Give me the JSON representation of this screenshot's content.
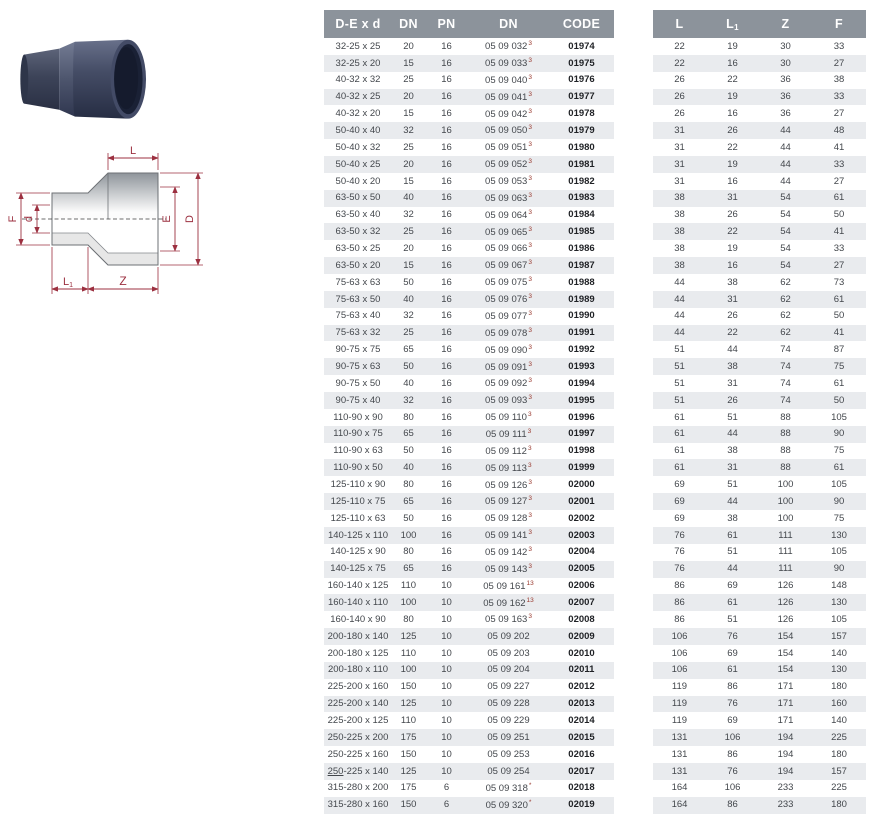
{
  "left_table": {
    "headers": [
      "D-E x d",
      "DN",
      "PN",
      "DN",
      "CODE"
    ]
  },
  "right_table": {
    "headers": [
      {
        "main": "L",
        "sub": ""
      },
      {
        "main": "L",
        "sub": "1"
      },
      {
        "main": "Z",
        "sub": ""
      },
      {
        "main": "F",
        "sub": ""
      }
    ]
  },
  "diagram": {
    "labels": {
      "l": "L",
      "f": "F",
      "d": "d",
      "e": "E",
      "big_d": "D",
      "l1_main": "L",
      "l1_sub": "1",
      "z": "Z"
    }
  },
  "colors": {
    "header_bg": "#8c939b",
    "row_stripe": "#e9ebee",
    "dimension_red": "#9c3040",
    "superscript_red": "#99392e"
  },
  "rows": [
    {
      "size": "32-25 x 25",
      "dn": "20",
      "pn": "16",
      "ref": "05 09 032",
      "sup": "3",
      "code": "01974",
      "L": "22",
      "L1": "19",
      "Z": "30",
      "F": "33"
    },
    {
      "size": "32-25 x 20",
      "dn": "15",
      "pn": "16",
      "ref": "05 09 033",
      "sup": "3",
      "code": "01975",
      "L": "22",
      "L1": "16",
      "Z": "30",
      "F": "27"
    },
    {
      "size": "40-32 x 32",
      "dn": "25",
      "pn": "16",
      "ref": "05 09 040",
      "sup": "3",
      "code": "01976",
      "L": "26",
      "L1": "22",
      "Z": "36",
      "F": "38"
    },
    {
      "size": "40-32 x 25",
      "dn": "20",
      "pn": "16",
      "ref": "05 09 041",
      "sup": "3",
      "code": "01977",
      "L": "26",
      "L1": "19",
      "Z": "36",
      "F": "33"
    },
    {
      "size": "40-32 x 20",
      "dn": "15",
      "pn": "16",
      "ref": "05 09 042",
      "sup": "3",
      "code": "01978",
      "L": "26",
      "L1": "16",
      "Z": "36",
      "F": "27"
    },
    {
      "size": "50-40 x 40",
      "dn": "32",
      "pn": "16",
      "ref": "05 09 050",
      "sup": "3",
      "code": "01979",
      "L": "31",
      "L1": "26",
      "Z": "44",
      "F": "48"
    },
    {
      "size": "50-40 x 32",
      "dn": "25",
      "pn": "16",
      "ref": "05 09 051",
      "sup": "3",
      "code": "01980",
      "L": "31",
      "L1": "22",
      "Z": "44",
      "F": "41"
    },
    {
      "size": "50-40 x 25",
      "dn": "20",
      "pn": "16",
      "ref": "05 09 052",
      "sup": "3",
      "code": "01981",
      "L": "31",
      "L1": "19",
      "Z": "44",
      "F": "33"
    },
    {
      "size": "50-40 x 20",
      "dn": "15",
      "pn": "16",
      "ref": "05 09 053",
      "sup": "3",
      "code": "01982",
      "L": "31",
      "L1": "16",
      "Z": "44",
      "F": "27"
    },
    {
      "size": "63-50 x 50",
      "dn": "40",
      "pn": "16",
      "ref": "05 09 063",
      "sup": "3",
      "code": "01983",
      "L": "38",
      "L1": "31",
      "Z": "54",
      "F": "61"
    },
    {
      "size": "63-50 x 40",
      "dn": "32",
      "pn": "16",
      "ref": "05 09 064",
      "sup": "3",
      "code": "01984",
      "L": "38",
      "L1": "26",
      "Z": "54",
      "F": "50"
    },
    {
      "size": "63-50 x 32",
      "dn": "25",
      "pn": "16",
      "ref": "05 09 065",
      "sup": "3",
      "code": "01985",
      "L": "38",
      "L1": "22",
      "Z": "54",
      "F": "41"
    },
    {
      "size": "63-50 x 25",
      "dn": "20",
      "pn": "16",
      "ref": "05 09 066",
      "sup": "3",
      "code": "01986",
      "L": "38",
      "L1": "19",
      "Z": "54",
      "F": "33"
    },
    {
      "size": "63-50 x 20",
      "dn": "15",
      "pn": "16",
      "ref": "05 09 067",
      "sup": "3",
      "code": "01987",
      "L": "38",
      "L1": "16",
      "Z": "54",
      "F": "27"
    },
    {
      "size": "75-63 x 63",
      "dn": "50",
      "pn": "16",
      "ref": "05 09 075",
      "sup": "3",
      "code": "01988",
      "L": "44",
      "L1": "38",
      "Z": "62",
      "F": "73"
    },
    {
      "size": "75-63 x 50",
      "dn": "40",
      "pn": "16",
      "ref": "05 09 076",
      "sup": "3",
      "code": "01989",
      "L": "44",
      "L1": "31",
      "Z": "62",
      "F": "61"
    },
    {
      "size": "75-63 x 40",
      "dn": "32",
      "pn": "16",
      "ref": "05 09 077",
      "sup": "3",
      "code": "01990",
      "L": "44",
      "L1": "26",
      "Z": "62",
      "F": "50"
    },
    {
      "size": "75-63 x 32",
      "dn": "25",
      "pn": "16",
      "ref": "05 09 078",
      "sup": "3",
      "code": "01991",
      "L": "44",
      "L1": "22",
      "Z": "62",
      "F": "41"
    },
    {
      "size": "90-75 x 75",
      "dn": "65",
      "pn": "16",
      "ref": "05 09 090",
      "sup": "3",
      "code": "01992",
      "L": "51",
      "L1": "44",
      "Z": "74",
      "F": "87"
    },
    {
      "size": "90-75 x 63",
      "dn": "50",
      "pn": "16",
      "ref": "05 09 091",
      "sup": "3",
      "code": "01993",
      "L": "51",
      "L1": "38",
      "Z": "74",
      "F": "75"
    },
    {
      "size": "90-75 x 50",
      "dn": "40",
      "pn": "16",
      "ref": "05 09 092",
      "sup": "3",
      "code": "01994",
      "L": "51",
      "L1": "31",
      "Z": "74",
      "F": "61"
    },
    {
      "size": "90-75 x 40",
      "dn": "32",
      "pn": "16",
      "ref": "05 09 093",
      "sup": "3",
      "code": "01995",
      "L": "51",
      "L1": "26",
      "Z": "74",
      "F": "50"
    },
    {
      "size": "110-90 x 90",
      "dn": "80",
      "pn": "16",
      "ref": "05 09 110",
      "sup": "3",
      "code": "01996",
      "L": "61",
      "L1": "51",
      "Z": "88",
      "F": "105"
    },
    {
      "size": "110-90 x 75",
      "dn": "65",
      "pn": "16",
      "ref": "05 09 111",
      "sup": "3",
      "code": "01997",
      "L": "61",
      "L1": "44",
      "Z": "88",
      "F": "90"
    },
    {
      "size": "110-90 x 63",
      "dn": "50",
      "pn": "16",
      "ref": "05 09 112",
      "sup": "3",
      "code": "01998",
      "L": "61",
      "L1": "38",
      "Z": "88",
      "F": "75"
    },
    {
      "size": "110-90 x 50",
      "dn": "40",
      "pn": "16",
      "ref": "05 09 113",
      "sup": "3",
      "code": "01999",
      "L": "61",
      "L1": "31",
      "Z": "88",
      "F": "61"
    },
    {
      "size": "125-110 x 90",
      "dn": "80",
      "pn": "16",
      "ref": "05 09 126",
      "sup": "3",
      "code": "02000",
      "L": "69",
      "L1": "51",
      "Z": "100",
      "F": "105"
    },
    {
      "size": "125-110 x 75",
      "dn": "65",
      "pn": "16",
      "ref": "05 09 127",
      "sup": "3",
      "code": "02001",
      "L": "69",
      "L1": "44",
      "Z": "100",
      "F": "90"
    },
    {
      "size": "125-110 x 63",
      "dn": "50",
      "pn": "16",
      "ref": "05 09 128",
      "sup": "3",
      "code": "02002",
      "L": "69",
      "L1": "38",
      "Z": "100",
      "F": "75"
    },
    {
      "size": "140-125 x 110",
      "dn": "100",
      "pn": "16",
      "ref": "05 09 141",
      "sup": "3",
      "code": "02003",
      "L": "76",
      "L1": "61",
      "Z": "111",
      "F": "130"
    },
    {
      "size": "140-125 x 90",
      "dn": "80",
      "pn": "16",
      "ref": "05 09 142",
      "sup": "3",
      "code": "02004",
      "L": "76",
      "L1": "51",
      "Z": "111",
      "F": "105"
    },
    {
      "size": "140-125 x 75",
      "dn": "65",
      "pn": "16",
      "ref": "05 09 143",
      "sup": "3",
      "code": "02005",
      "L": "76",
      "L1": "44",
      "Z": "111",
      "F": "90"
    },
    {
      "size": "160-140 x 125",
      "dn": "110",
      "pn": "10",
      "ref": "05 09 161",
      "sup": "13",
      "code": "02006",
      "L": "86",
      "L1": "69",
      "Z": "126",
      "F": "148"
    },
    {
      "size": "160-140 x 110",
      "dn": "100",
      "pn": "10",
      "ref": "05 09 162",
      "sup": "13",
      "code": "02007",
      "L": "86",
      "L1": "61",
      "Z": "126",
      "F": "130"
    },
    {
      "size": "160-140 x 90",
      "dn": "80",
      "pn": "10",
      "ref": "05 09 163",
      "sup": "3",
      "code": "02008",
      "L": "86",
      "L1": "51",
      "Z": "126",
      "F": "105"
    },
    {
      "size": "200-180 x 140",
      "dn": "125",
      "pn": "10",
      "ref": "05 09 202",
      "sup": "",
      "code": "02009",
      "L": "106",
      "L1": "76",
      "Z": "154",
      "F": "157"
    },
    {
      "size": "200-180 x 125",
      "dn": "110",
      "pn": "10",
      "ref": "05 09 203",
      "sup": "",
      "code": "02010",
      "L": "106",
      "L1": "69",
      "Z": "154",
      "F": "140"
    },
    {
      "size": "200-180 x 110",
      "dn": "100",
      "pn": "10",
      "ref": "05 09 204",
      "sup": "",
      "code": "02011",
      "L": "106",
      "L1": "61",
      "Z": "154",
      "F": "130"
    },
    {
      "size": "225-200 x 160",
      "dn": "150",
      "pn": "10",
      "ref": "05 09 227",
      "sup": "",
      "code": "02012",
      "L": "119",
      "L1": "86",
      "Z": "171",
      "F": "180"
    },
    {
      "size": "225-200 x 140",
      "dn": "125",
      "pn": "10",
      "ref": "05 09 228",
      "sup": "",
      "code": "02013",
      "L": "119",
      "L1": "76",
      "Z": "171",
      "F": "160"
    },
    {
      "size": "225-200 x 125",
      "dn": "110",
      "pn": "10",
      "ref": "05 09 229",
      "sup": "",
      "code": "02014",
      "L": "119",
      "L1": "69",
      "Z": "171",
      "F": "140"
    },
    {
      "size": "250-225 x 200",
      "dn": "175",
      "pn": "10",
      "ref": "05 09 251",
      "sup": "",
      "code": "02015",
      "L": "131",
      "L1": "106",
      "Z": "194",
      "F": "225"
    },
    {
      "size": "250-225 x 160",
      "dn": "150",
      "pn": "10",
      "ref": "05 09 253",
      "sup": "",
      "code": "02016",
      "L": "131",
      "L1": "86",
      "Z": "194",
      "F": "180"
    },
    {
      "size": "250-225 x 140",
      "underline": "250",
      "dn": "125",
      "pn": "10",
      "ref": "05 09 254",
      "sup": "",
      "code": "02017",
      "L": "131",
      "L1": "76",
      "Z": "194",
      "F": "157"
    },
    {
      "size": "315-280 x 200",
      "dn": "175",
      "pn": "6",
      "ref": "05 09 318",
      "sup": "*",
      "code": "02018",
      "L": "164",
      "L1": "106",
      "Z": "233",
      "F": "225"
    },
    {
      "size": "315-280 x 160",
      "dn": "150",
      "pn": "6",
      "ref": "05 09 320",
      "sup": "*",
      "code": "02019",
      "L": "164",
      "L1": "86",
      "Z": "233",
      "F": "180"
    }
  ]
}
